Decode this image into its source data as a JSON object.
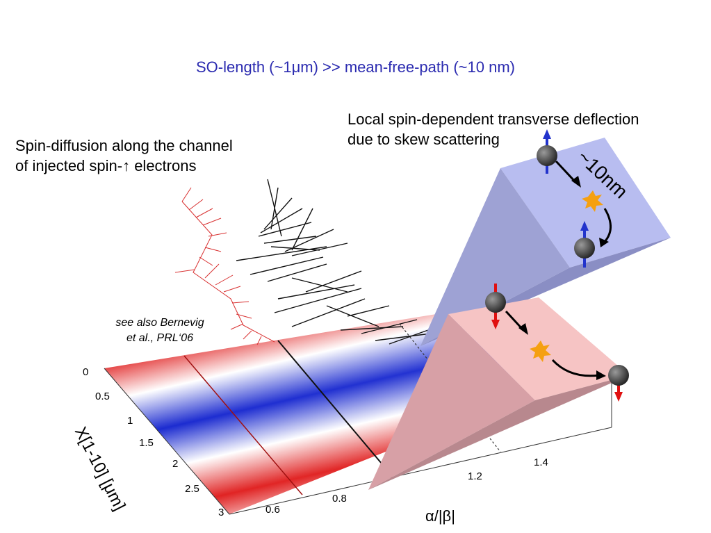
{
  "slide": {
    "title": "SO-length (~1μm) >> mean-free-path (~10 nm)",
    "left_caption_line1": "Spin-diffusion along the channel",
    "left_caption_line2": "of injected spin-↑ electrons",
    "right_caption_line1": "Local spin-dependent transverse deflection",
    "right_caption_line2": "due to skew scattering",
    "reference_line1": "see also Bernevig",
    "reference_line2": "et al., PRL‘06",
    "scale_label": "~10nm"
  },
  "plot": {
    "x_axis_label": "X[1-10] [μm]",
    "x_ticks": [
      "0",
      "0.5",
      "1",
      "1.5",
      "2",
      "2.5",
      "3"
    ],
    "alpha_axis_label": "α/|β|",
    "alpha_ticks": [
      "0.6",
      "0.8",
      "1.2",
      "1.4"
    ]
  },
  "colors": {
    "title": "#2b2bb0",
    "spin_up_arrow": "#2233cc",
    "spin_down_arrow": "#e01010",
    "upper_wedge": "#b8bdf0",
    "lower_wedge": "#f2b8b8",
    "plot_red": "#e02020",
    "plot_blue": "#1a2ad0"
  }
}
